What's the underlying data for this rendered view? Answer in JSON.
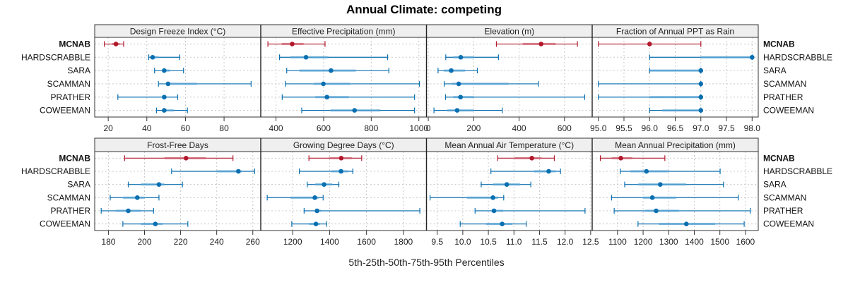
{
  "chart_data": {
    "type": "dotplot-percentiles",
    "title": "Annual Climate: competing",
    "xlabel": "5th-25th-50th-75th-95th Percentiles",
    "ylabel": "",
    "grid": true,
    "sites": [
      "MCNAB",
      "HARDSCRABBLE",
      "SARA",
      "SCAMMAN",
      "PRATHER",
      "COWEEMAN"
    ],
    "highlight_site": "MCNAB",
    "colors": {
      "highlight": "#b2182b",
      "other": "#0a6fb0",
      "other_light": "#5aa5d6",
      "highlight_light": "#d06070",
      "grid": "#c8c8c8",
      "strip": "#efefef"
    },
    "panels": [
      {
        "title": "Design Freeze Index (°C)",
        "xlim": [
          13,
          99
        ],
        "ticks": [
          20,
          40,
          60,
          80
        ],
        "tick_labels": [
          "20",
          "40",
          "60",
          "80"
        ],
        "series": [
          {
            "site": "MCNAB",
            "p5": 18,
            "p25": 22,
            "p50": 24,
            "p75": 26,
            "p95": 28
          },
          {
            "site": "HARDSCRABBLE",
            "p5": 41,
            "p25": 42,
            "p50": 43,
            "p75": 46,
            "p95": 57
          },
          {
            "site": "SARA",
            "p5": 44,
            "p25": 48,
            "p50": 49,
            "p75": 52,
            "p95": 59
          },
          {
            "site": "SCAMMAN",
            "p5": 46,
            "p25": 50,
            "p50": 51,
            "p75": 66,
            "p95": 94
          },
          {
            "site": "PRATHER",
            "p5": 25,
            "p25": 48,
            "p50": 49,
            "p75": 50,
            "p95": 56
          },
          {
            "site": "COWEEMAN",
            "p5": 45,
            "p25": 48,
            "p50": 49,
            "p75": 54,
            "p95": 61
          }
        ]
      },
      {
        "title": "Effective Precipitation (mm)",
        "xlim": [
          336,
          1032
        ],
        "ticks": [
          400,
          600,
          800,
          1000
        ],
        "tick_labels": [
          "400",
          "600",
          "800",
          "1000"
        ],
        "series": [
          {
            "site": "MCNAB",
            "p5": 366,
            "p25": 424,
            "p50": 468,
            "p75": 516,
            "p95": 606
          },
          {
            "site": "HARDSCRABBLE",
            "p5": 415,
            "p25": 460,
            "p50": 526,
            "p75": 620,
            "p95": 869
          },
          {
            "site": "SARA",
            "p5": 445,
            "p25": 498,
            "p50": 631,
            "p75": 735,
            "p95": 874
          },
          {
            "site": "SCAMMAN",
            "p5": 439,
            "p25": 558,
            "p50": 599,
            "p75": 711,
            "p95": 1002
          },
          {
            "site": "PRATHER",
            "p5": 426,
            "p25": 565,
            "p50": 614,
            "p75": 706,
            "p95": 982
          },
          {
            "site": "COWEEMAN",
            "p5": 508,
            "p25": 629,
            "p50": 730,
            "p75": 839,
            "p95": 982
          }
        ]
      },
      {
        "title": "Elevation (m)",
        "xlim": [
          -8,
          722
        ],
        "ticks": [
          0,
          200,
          400,
          600
        ],
        "tick_labels": [
          "0",
          "200",
          "400",
          "600"
        ],
        "series": [
          {
            "site": "MCNAB",
            "p5": 300,
            "p25": 416,
            "p50": 497,
            "p75": 561,
            "p95": 657
          },
          {
            "site": "HARDSCRABBLE",
            "p5": 77,
            "p25": 110,
            "p50": 143,
            "p75": 200,
            "p95": 309
          },
          {
            "site": "SARA",
            "p5": 43,
            "p25": 68,
            "p50": 101,
            "p75": 162,
            "p95": 216
          },
          {
            "site": "SCAMMAN",
            "p5": 70,
            "p25": 103,
            "p50": 134,
            "p75": 354,
            "p95": 485
          },
          {
            "site": "PRATHER",
            "p5": 76,
            "p25": 110,
            "p50": 142,
            "p75": 200,
            "p95": 689
          },
          {
            "site": "COWEEMAN",
            "p5": 25,
            "p25": 84,
            "p50": 127,
            "p75": 200,
            "p95": 326
          }
        ]
      },
      {
        "title": "Fraction of Annual PPT as Rain",
        "xlim": [
          94.88,
          98.12
        ],
        "ticks": [
          95.0,
          95.5,
          96.0,
          96.5,
          97.0,
          97.5,
          98.0
        ],
        "tick_labels": [
          "95.0",
          "95.5",
          "96.0",
          "96.5",
          "97.0",
          "97.5",
          "98.0"
        ],
        "series": [
          {
            "site": "MCNAB",
            "p5": 95,
            "p25": 96,
            "p50": 96,
            "p75": 96,
            "p95": 97
          },
          {
            "site": "HARDSCRABBLE",
            "p5": 96,
            "p25": 97,
            "p50": 98,
            "p75": 98,
            "p95": 98
          },
          {
            "site": "SARA",
            "p5": 96,
            "p25": 96,
            "p50": 97,
            "p75": 97,
            "p95": 97
          },
          {
            "site": "SCAMMAN",
            "p5": 95,
            "p25": 97,
            "p50": 97,
            "p75": 97,
            "p95": 97
          },
          {
            "site": "PRATHER",
            "p5": 95,
            "p25": 96,
            "p50": 97,
            "p75": 97,
            "p95": 97
          },
          {
            "site": "COWEEMAN",
            "p5": 96,
            "p25": 96.25,
            "p50": 97,
            "p75": 97,
            "p95": 97
          }
        ]
      },
      {
        "title": "Frost-Free Days",
        "xlim": [
          172.4,
          264.4
        ],
        "ticks": [
          180,
          200,
          220,
          240,
          260
        ],
        "tick_labels": [
          "180",
          "200",
          "220",
          "240",
          "260"
        ],
        "series": [
          {
            "site": "MCNAB",
            "p5": 189,
            "p25": 211,
            "p50": 223,
            "p75": 234,
            "p95": 249
          },
          {
            "site": "HARDSCRABBLE",
            "p5": 215,
            "p25": 240,
            "p50": 252,
            "p75": 254,
            "p95": 261
          },
          {
            "site": "SARA",
            "p5": 191,
            "p25": 198,
            "p50": 208,
            "p75": 211,
            "p95": 221
          },
          {
            "site": "SCAMMAN",
            "p5": 181,
            "p25": 188,
            "p50": 196,
            "p75": 200,
            "p95": 208
          },
          {
            "site": "PRATHER",
            "p5": 176,
            "p25": 184,
            "p50": 191,
            "p75": 198,
            "p95": 205
          },
          {
            "site": "COWEEMAN",
            "p5": 188,
            "p25": 198,
            "p50": 206,
            "p75": 210,
            "p95": 224
          }
        ]
      },
      {
        "title": "Growing Degree Days (°C)",
        "xlim": [
          1027,
          1925
        ],
        "ticks": [
          1200,
          1400,
          1600,
          1800
        ],
        "tick_labels": [
          "1200",
          "1400",
          "1600",
          "1800"
        ],
        "series": [
          {
            "site": "MCNAB",
            "p5": 1288,
            "p25": 1398,
            "p50": 1463,
            "p75": 1522,
            "p95": 1574
          },
          {
            "site": "HARDSCRABBLE",
            "p5": 1236,
            "p25": 1409,
            "p50": 1462,
            "p75": 1502,
            "p95": 1526
          },
          {
            "site": "SARA",
            "p5": 1279,
            "p25": 1322,
            "p50": 1370,
            "p75": 1415,
            "p95": 1450
          },
          {
            "site": "SCAMMAN",
            "p5": 1062,
            "p25": 1188,
            "p50": 1320,
            "p75": 1342,
            "p95": 1365
          },
          {
            "site": "PRATHER",
            "p5": 1262,
            "p25": 1322,
            "p50": 1332,
            "p75": 1355,
            "p95": 1889
          },
          {
            "site": "COWEEMAN",
            "p5": 1195,
            "p25": 1288,
            "p50": 1326,
            "p75": 1349,
            "p95": 1384
          }
        ]
      },
      {
        "title": "Mean Annual Air Temperature (°C)",
        "xlim": [
          9.29,
          12.53
        ],
        "ticks": [
          9.5,
          10.0,
          10.5,
          11.0,
          11.5,
          12.0,
          12.5
        ],
        "tick_labels": [
          "9.5",
          "10.0",
          "10.5",
          "11.0",
          "11.5",
          "12.0",
          "12.5"
        ],
        "series": [
          {
            "site": "MCNAB",
            "p5": 10.68,
            "p25": 11.01,
            "p50": 11.35,
            "p75": 11.54,
            "p95": 11.79
          },
          {
            "site": "HARDSCRABBLE",
            "p5": 10.55,
            "p25": 11.39,
            "p50": 11.68,
            "p75": 11.82,
            "p95": 11.91
          },
          {
            "site": "SARA",
            "p5": 10.36,
            "p25": 10.59,
            "p50": 10.86,
            "p75": 11.12,
            "p95": 11.33
          },
          {
            "site": "SCAMMAN",
            "p5": 9.36,
            "p25": 10.08,
            "p50": 10.59,
            "p75": 10.69,
            "p95": 10.8
          },
          {
            "site": "PRATHER",
            "p5": 10.24,
            "p25": 10.56,
            "p50": 10.61,
            "p75": 10.79,
            "p95": 12.39
          },
          {
            "site": "COWEEMAN",
            "p5": 9.95,
            "p25": 10.46,
            "p50": 10.77,
            "p75": 10.97,
            "p95": 11.24
          }
        ]
      },
      {
        "title": "Mean Annual Precipitation (mm)",
        "xlim": [
          1001,
          1650
        ],
        "ticks": [
          1100,
          1200,
          1300,
          1400,
          1500,
          1600
        ],
        "tick_labels": [
          "1100",
          "1200",
          "1300",
          "1400",
          "1500",
          "1600"
        ],
        "series": [
          {
            "site": "MCNAB",
            "p5": 1033,
            "p25": 1077,
            "p50": 1113,
            "p75": 1158,
            "p95": 1285
          },
          {
            "site": "HARDSCRABBLE",
            "p5": 1111,
            "p25": 1150,
            "p50": 1213,
            "p75": 1300,
            "p95": 1501
          },
          {
            "site": "SARA",
            "p5": 1128,
            "p25": 1181,
            "p50": 1267,
            "p75": 1368,
            "p95": 1514
          },
          {
            "site": "SCAMMAN",
            "p5": 1077,
            "p25": 1200,
            "p50": 1236,
            "p75": 1330,
            "p95": 1572
          },
          {
            "site": "PRATHER",
            "p5": 1087,
            "p25": 1207,
            "p50": 1251,
            "p75": 1340,
            "p95": 1619
          },
          {
            "site": "COWEEMAN",
            "p5": 1180,
            "p25": 1262,
            "p50": 1369,
            "p75": 1482,
            "p95": 1595
          }
        ]
      }
    ]
  }
}
